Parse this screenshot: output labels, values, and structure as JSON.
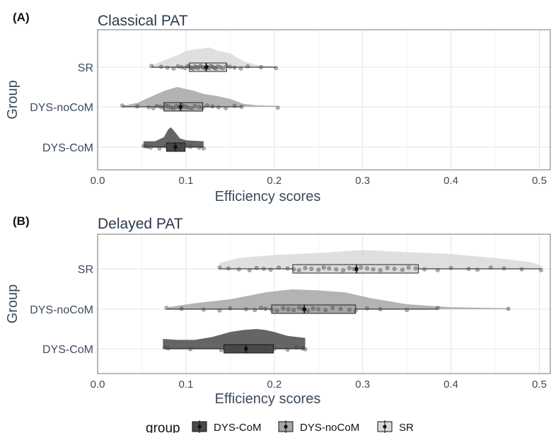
{
  "colors": {
    "title": "#2b3a4a",
    "axis_text": "#3c4a5a",
    "grid": "#e3e3e3",
    "panel_border": "#555555",
    "SR": "#d9d9d9",
    "DYS-noCoM": "#a6a6a6",
    "DYS-CoM": "#4a4a4a"
  },
  "legend": {
    "title": "group",
    "items": [
      {
        "label": "DYS-CoM",
        "color_key": "DYS-CoM"
      },
      {
        "label": "DYS-noCoM",
        "color_key": "DYS-noCoM"
      },
      {
        "label": "SR",
        "color_key": "SR"
      }
    ]
  },
  "chart_data": [
    {
      "type": "raincloud",
      "tag": "(A)",
      "title": "Classical PAT",
      "xlabel": "Efficiency scores",
      "ylabel": "Group",
      "xlim": [
        0.0,
        0.52
      ],
      "xticks": [
        "0.0",
        "0.1",
        "0.2",
        "0.3",
        "0.4",
        "0.5"
      ],
      "categories": [
        "SR",
        "DYS-noCoM",
        "DYS-CoM"
      ],
      "series": [
        {
          "name": "SR",
          "box": {
            "whisker_low": 0.061,
            "q1": 0.104,
            "median": 0.123,
            "q3": 0.146,
            "whisker_high": 0.202
          },
          "points": [
            0.061,
            0.072,
            0.079,
            0.086,
            0.091,
            0.095,
            0.099,
            0.102,
            0.104,
            0.106,
            0.108,
            0.11,
            0.112,
            0.114,
            0.116,
            0.118,
            0.12,
            0.122,
            0.123,
            0.124,
            0.126,
            0.128,
            0.13,
            0.132,
            0.134,
            0.136,
            0.139,
            0.142,
            0.146,
            0.15,
            0.155,
            0.162,
            0.17,
            0.185,
            0.202
          ],
          "density": {
            "x": [
              0.062,
              0.075,
              0.09,
              0.1,
              0.11,
              0.12,
              0.126,
              0.135,
              0.15,
              0.165,
              0.18,
              0.2
            ],
            "y": [
              0.1,
              0.35,
              0.6,
              0.82,
              0.9,
              0.95,
              1.0,
              0.85,
              0.7,
              0.3,
              0.12,
              0.05
            ]
          }
        },
        {
          "name": "DYS-noCoM",
          "box": {
            "whisker_low": 0.028,
            "q1": 0.075,
            "median": 0.094,
            "q3": 0.119,
            "whisker_high": 0.163
          },
          "points": [
            0.028,
            0.045,
            0.058,
            0.063,
            0.067,
            0.071,
            0.074,
            0.077,
            0.08,
            0.083,
            0.086,
            0.089,
            0.092,
            0.094,
            0.096,
            0.099,
            0.102,
            0.106,
            0.11,
            0.115,
            0.119,
            0.124,
            0.13,
            0.137,
            0.145,
            0.155,
            0.163,
            0.204
          ],
          "density": {
            "x": [
              0.028,
              0.045,
              0.06,
              0.075,
              0.09,
              0.1,
              0.11,
              0.12,
              0.135,
              0.15,
              0.165,
              0.18,
              0.203
            ],
            "y": [
              0.05,
              0.2,
              0.5,
              0.8,
              1.0,
              0.9,
              0.8,
              0.65,
              0.55,
              0.4,
              0.15,
              0.08,
              0.05
            ]
          }
        },
        {
          "name": "DYS-CoM",
          "box": {
            "whisker_low": 0.052,
            "q1": 0.078,
            "median": 0.088,
            "q3": 0.099,
            "whisker_high": 0.12
          },
          "points": [
            0.052,
            0.056,
            0.06,
            0.07,
            0.077,
            0.08,
            0.082,
            0.084,
            0.086,
            0.088,
            0.089,
            0.091,
            0.093,
            0.095,
            0.098,
            0.105,
            0.115,
            0.12
          ],
          "density": {
            "x": [
              0.052,
              0.065,
              0.075,
              0.08,
              0.083,
              0.087,
              0.093,
              0.1,
              0.11,
              0.12
            ],
            "y": [
              0.3,
              0.3,
              0.5,
              0.9,
              1.0,
              0.8,
              0.45,
              0.35,
              0.32,
              0.3
            ]
          }
        }
      ]
    },
    {
      "type": "raincloud",
      "tag": "(B)",
      "title": "Delayed PAT",
      "xlabel": "Efficiency scores",
      "ylabel": "Group",
      "xlim": [
        0.0,
        0.52
      ],
      "xticks": [
        "0.0",
        "0.1",
        "0.2",
        "0.3",
        "0.4",
        "0.5"
      ],
      "categories": [
        "SR",
        "DYS-noCoM",
        "DYS-CoM"
      ],
      "series": [
        {
          "name": "SR",
          "box": {
            "whisker_low": 0.138,
            "q1": 0.221,
            "median": 0.293,
            "q3": 0.363,
            "whisker_high": 0.502
          },
          "points": [
            0.138,
            0.148,
            0.16,
            0.172,
            0.18,
            0.188,
            0.196,
            0.205,
            0.215,
            0.222,
            0.228,
            0.235,
            0.242,
            0.25,
            0.256,
            0.262,
            0.27,
            0.278,
            0.285,
            0.29,
            0.293,
            0.298,
            0.305,
            0.312,
            0.32,
            0.328,
            0.336,
            0.345,
            0.352,
            0.36,
            0.37,
            0.385,
            0.4,
            0.42,
            0.43,
            0.445,
            0.46,
            0.48,
            0.502
          ],
          "density": {
            "x": [
              0.138,
              0.16,
              0.2,
              0.25,
              0.3,
              0.35,
              0.4,
              0.45,
              0.49,
              0.503
            ],
            "y": [
              0.3,
              0.55,
              0.7,
              0.8,
              0.95,
              0.85,
              0.75,
              0.55,
              0.35,
              0.15
            ]
          }
        },
        {
          "name": "DYS-noCoM",
          "box": {
            "whisker_low": 0.078,
            "q1": 0.197,
            "median": 0.234,
            "q3": 0.292,
            "whisker_high": 0.385
          },
          "points": [
            0.078,
            0.095,
            0.12,
            0.138,
            0.15,
            0.168,
            0.178,
            0.185,
            0.19,
            0.197,
            0.203,
            0.21,
            0.216,
            0.222,
            0.228,
            0.232,
            0.234,
            0.238,
            0.244,
            0.25,
            0.258,
            0.266,
            0.275,
            0.285,
            0.292,
            0.305,
            0.32,
            0.35,
            0.385,
            0.465
          ],
          "density": {
            "x": [
              0.08,
              0.11,
              0.15,
              0.19,
              0.22,
              0.25,
              0.28,
              0.31,
              0.35,
              0.4,
              0.465
            ],
            "y": [
              0.1,
              0.3,
              0.5,
              0.85,
              1.0,
              0.95,
              0.85,
              0.55,
              0.25,
              0.1,
              0.05
            ]
          }
        },
        {
          "name": "DYS-CoM",
          "box": {
            "whisker_low": 0.076,
            "q1": 0.143,
            "median": 0.168,
            "q3": 0.199,
            "whisker_high": 0.235
          },
          "points": [
            0.076,
            0.08,
            0.105,
            0.14,
            0.148,
            0.152,
            0.158,
            0.163,
            0.168,
            0.175,
            0.182,
            0.19,
            0.2,
            0.215,
            0.225,
            0.232,
            0.235
          ],
          "density": {
            "x": [
              0.074,
              0.09,
              0.11,
              0.13,
              0.15,
              0.165,
              0.18,
              0.19,
              0.2,
              0.215,
              0.235
            ],
            "y": [
              0.5,
              0.45,
              0.45,
              0.6,
              0.85,
              0.95,
              1.0,
              0.95,
              0.85,
              0.65,
              0.55
            ]
          }
        }
      ]
    }
  ]
}
